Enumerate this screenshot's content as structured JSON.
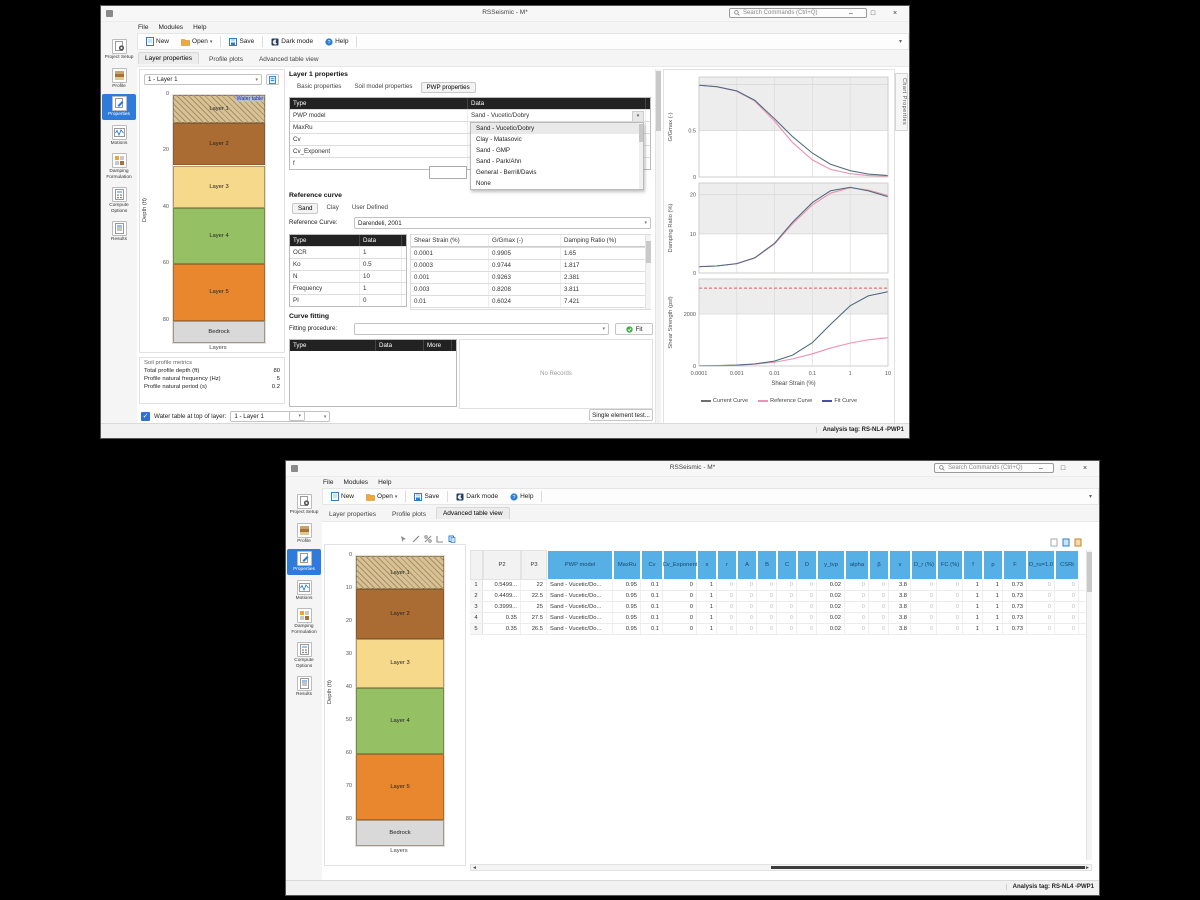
{
  "app": {
    "title": "RSSeismic - M*",
    "search_placeholder": "Search Commands (Ctrl+Q)",
    "menus": [
      "File",
      "Modules",
      "Help"
    ],
    "toolbar": {
      "new": "New",
      "open": "Open",
      "save": "Save",
      "dark_mode": "Dark mode",
      "help": "Help"
    },
    "sidebar": [
      "Project Setup",
      "Profile",
      "Properties",
      "Motions",
      "Damping Formulation",
      "Compute Options",
      "Results"
    ],
    "sidebar_selected": 2,
    "tabs": [
      "Layer properties",
      "Profile plots",
      "Advanced table view"
    ],
    "status_tag": "Analysis tag: RS-NL4 -PWP1",
    "window_controls": {
      "minimize": "–",
      "maximize": "□",
      "close": "×"
    }
  },
  "profile": {
    "selector_value": "1 - Layer 1",
    "ylabel": "Depth (ft)",
    "xlabel": "Layers",
    "water_table_label": "Water table",
    "depth_max": 88,
    "layers": [
      {
        "name": "Layer 1",
        "from": 0,
        "to": 10,
        "color": "#d8c195",
        "hatch": true
      },
      {
        "name": "Layer 2",
        "from": 10,
        "to": 25,
        "color": "#aa6c33"
      },
      {
        "name": "Layer 3",
        "from": 25,
        "to": 40,
        "color": "#f7d98c"
      },
      {
        "name": "Layer 4",
        "from": 40,
        "to": 60,
        "color": "#95c164"
      },
      {
        "name": "Layer 5",
        "from": 60,
        "to": 80,
        "color": "#e8872e"
      },
      {
        "name": "Bedrock",
        "from": 80,
        "to": 88,
        "color": "#d9d9d9"
      }
    ],
    "ticks_w1": [
      0,
      20,
      40,
      60,
      80
    ],
    "ticks_w2": [
      0,
      10,
      20,
      30,
      40,
      50,
      60,
      70,
      80
    ]
  },
  "metrics": {
    "title": "Soil profile metrics",
    "rows": [
      {
        "label": "Total profile depth (ft)",
        "value": "80"
      },
      {
        "label": "Profile natural frequency (Hz)",
        "value": "5"
      },
      {
        "label": "Profile natural period (s)",
        "value": "0.2"
      }
    ]
  },
  "water_row": {
    "label": "Water table at top of layer:",
    "value": "1 - Layer 1"
  },
  "layer_props": {
    "title": "Layer 1 properties",
    "tabs": [
      "Basic properties",
      "Soil model properties",
      "PWP properties"
    ],
    "selected_tab": 2,
    "header": [
      "Type",
      "Data"
    ],
    "rows": [
      {
        "type": "PWP model",
        "data": "Sand - Vucetic/Dobry"
      },
      {
        "type": "MaxRu",
        "data": ""
      },
      {
        "type": "Cv",
        "data": ""
      },
      {
        "type": "Cv_Exponent",
        "data": ""
      },
      {
        "type": "f",
        "data": ""
      }
    ],
    "dropdown_options": [
      "Sand - Vucetic/Dobry",
      "Clay - Matasovic",
      "Sand - GMP",
      "Sand - Park/Ahn",
      "General - Berrill/Davis",
      "None"
    ]
  },
  "reference_curve": {
    "title": "Reference curve",
    "tabs": [
      "Sand",
      "Clay",
      "User Defined"
    ],
    "selected_tab": 0,
    "label": "Reference Curve:",
    "value": "Darendeli, 2001",
    "params_header": [
      "Type",
      "Data"
    ],
    "params": [
      [
        "OCR",
        "1"
      ],
      [
        "Ko",
        "0.5"
      ],
      [
        "N",
        "10"
      ],
      [
        "Frequency",
        "1"
      ],
      [
        "PI",
        "0"
      ]
    ],
    "table_header": [
      "Shear Strain (%)",
      "G/Gmax (-)",
      "Damping Ratio (%)"
    ],
    "table_rows": [
      [
        "0.0001",
        "0.9905",
        "1.65"
      ],
      [
        "0.0003",
        "0.9744",
        "1.817"
      ],
      [
        "0.001",
        "0.9263",
        "2.381"
      ],
      [
        "0.003",
        "0.8208",
        "3.811"
      ],
      [
        "0.01",
        "0.6024",
        "7.421"
      ]
    ]
  },
  "curve_fitting": {
    "title": "Curve fitting",
    "proc_label": "Fitting procedure:",
    "fit_label": "Fit",
    "header": [
      "Type",
      "Data",
      "More"
    ],
    "empty_text": "No Records",
    "single_test_label": "Single element test..."
  },
  "charts": {
    "panel_tab": "Chart Properties",
    "x": [
      0.0001,
      0.0003,
      0.001,
      0.003,
      0.01,
      0.03,
      0.1,
      0.3,
      1,
      3,
      10
    ],
    "x_ticks": [
      "0.0001",
      "0.001",
      "0.01",
      "0.1",
      "1",
      "10"
    ],
    "xlabel": "Shear Strain (%)",
    "legend": [
      {
        "label": "Current Curve",
        "color": "#6f6f6f"
      },
      {
        "label": "Reference Curve",
        "color": "#ef91b4"
      },
      {
        "label": "Fit Curve",
        "color": "#4d4da8"
      }
    ],
    "plots": [
      {
        "ylabel": "G/Gmax (-)",
        "ymin": 0,
        "ymax": 1.08,
        "gridlines": [
          1,
          0.5,
          0
        ],
        "band_from": 0.5,
        "tick_labels": [
          [
            0.5,
            "0.5"
          ],
          [
            0,
            "0"
          ]
        ],
        "series": [
          {
            "name": "reference",
            "color": "#ef91b4",
            "values": [
              0.991,
              0.974,
              0.926,
              0.82,
              0.602,
              0.372,
              0.185,
              0.082,
              0.036,
              0.016,
              0.008
            ]
          },
          {
            "name": "current",
            "color": "#5aa467",
            "values": [
              0.991,
              0.975,
              0.93,
              0.828,
              0.628,
              0.435,
              0.258,
              0.138,
              0.068,
              0.032,
              0.016
            ]
          },
          {
            "name": "fit",
            "color": "#56569a",
            "width": 0.7,
            "values": [
              0.991,
              0.975,
              0.93,
              0.828,
              0.628,
              0.435,
              0.258,
              0.138,
              0.068,
              0.032,
              0.016
            ]
          }
        ]
      },
      {
        "ylabel": "Damping Ratio (%)",
        "ymin": 0,
        "ymax": 23,
        "gridlines": [
          20,
          10,
          0
        ],
        "band_from": 10,
        "tick_labels": [
          [
            20,
            "20"
          ],
          [
            10,
            "10"
          ],
          [
            0,
            "0"
          ]
        ],
        "series": [
          {
            "name": "reference",
            "color": "#ef91b4",
            "values": [
              1.65,
              1.82,
              2.38,
              3.81,
              7.42,
              12.6,
              17.4,
              20.4,
              21.8,
              21.2,
              19.8
            ]
          },
          {
            "name": "current",
            "color": "#5aa467",
            "values": [
              1.6,
              1.8,
              2.4,
              3.9,
              7.6,
              13.0,
              18.0,
              21.0,
              21.9,
              21.0,
              19.5
            ]
          },
          {
            "name": "fit",
            "color": "#56569a",
            "width": 0.7,
            "values": [
              1.6,
              1.8,
              2.4,
              3.9,
              7.6,
              13.0,
              18.0,
              21.0,
              21.9,
              21.0,
              19.5
            ]
          }
        ]
      },
      {
        "ylabel": "Shear Strength (psf)",
        "ymin": 0,
        "ymax": 3350,
        "gridlines": [
          2000,
          0
        ],
        "band_from": 2000,
        "tick_labels": [
          [
            2000,
            "2000"
          ],
          [
            0,
            "0"
          ]
        ],
        "dashed_line": {
          "y": 3000,
          "color": "#e25b5b"
        },
        "series": [
          {
            "name": "reference",
            "color": "#ef91b4",
            "values": [
              8,
              14,
              32,
              70,
              145,
              275,
              470,
              690,
              880,
              1010,
              1090
            ]
          },
          {
            "name": "current",
            "color": "#5aa467",
            "values": [
              8,
              15,
              35,
              80,
              190,
              420,
              900,
              1600,
              2320,
              2700,
              2860
            ]
          },
          {
            "name": "fit",
            "color": "#56569a",
            "width": 0.7,
            "values": [
              8,
              15,
              35,
              80,
              190,
              420,
              900,
              1600,
              2320,
              2700,
              2860
            ]
          }
        ]
      }
    ]
  },
  "adv_table": {
    "columns": [
      {
        "label": "P2",
        "kind": "gray"
      },
      {
        "label": "P3",
        "kind": "gray"
      },
      {
        "label": "PWP model",
        "kind": "blue"
      },
      {
        "label": "MaxRu",
        "kind": "blue"
      },
      {
        "label": "Cv",
        "kind": "blue"
      },
      {
        "label": "Cv_Exponent",
        "kind": "blue"
      },
      {
        "label": "s",
        "kind": "blue"
      },
      {
        "label": "r",
        "kind": "blue",
        "muted": true
      },
      {
        "label": "A",
        "kind": "blue",
        "muted": true
      },
      {
        "label": "B",
        "kind": "blue",
        "muted": true
      },
      {
        "label": "C",
        "kind": "blue",
        "muted": true
      },
      {
        "label": "D",
        "kind": "blue",
        "muted": true
      },
      {
        "label": "y_tvp",
        "kind": "blue"
      },
      {
        "label": "alpha",
        "kind": "blue",
        "muted": true
      },
      {
        "label": "β",
        "kind": "blue",
        "muted": true
      },
      {
        "label": "v",
        "kind": "blue"
      },
      {
        "label": "D_r (%)",
        "kind": "blue",
        "muted": true
      },
      {
        "label": "FC (%)",
        "kind": "blue",
        "muted": true
      },
      {
        "label": "f",
        "kind": "blue"
      },
      {
        "label": "p",
        "kind": "blue"
      },
      {
        "label": "F",
        "kind": "blue"
      },
      {
        "label": "D_ru=1.0",
        "kind": "blue",
        "muted": true
      },
      {
        "label": "CSRt",
        "kind": "blue",
        "muted": true
      }
    ],
    "rows": [
      [
        "0.5499...",
        "22",
        "Sand - Vucetic/Do...",
        "0.95",
        "0.1",
        "0",
        "1",
        "0",
        "0",
        "0",
        "0",
        "0",
        "0.02",
        "0",
        "0",
        "3.8",
        "0",
        "0",
        "1",
        "1",
        "0.73",
        "0",
        "0"
      ],
      [
        "0.4499...",
        "22.5",
        "Sand - Vucetic/Do...",
        "0.95",
        "0.1",
        "0",
        "1",
        "0",
        "0",
        "0",
        "0",
        "0",
        "0.02",
        "0",
        "0",
        "3.8",
        "0",
        "0",
        "1",
        "1",
        "0.73",
        "0",
        "0"
      ],
      [
        "0.3999...",
        "25",
        "Sand - Vucetic/Do...",
        "0.95",
        "0.1",
        "0",
        "1",
        "0",
        "0",
        "0",
        "0",
        "0",
        "0.02",
        "0",
        "0",
        "3.8",
        "0",
        "0",
        "1",
        "1",
        "0.73",
        "0",
        "0"
      ],
      [
        "0.35",
        "27.5",
        "Sand - Vucetic/Do...",
        "0.95",
        "0.1",
        "0",
        "1",
        "0",
        "0",
        "0",
        "0",
        "0",
        "0.02",
        "0",
        "0",
        "3.8",
        "0",
        "0",
        "1",
        "1",
        "0.73",
        "0",
        "0"
      ],
      [
        "0.35",
        "26.5",
        "Sand - Vucetic/Do...",
        "0.95",
        "0.1",
        "0",
        "1",
        "0",
        "0",
        "0",
        "0",
        "0",
        "0.02",
        "0",
        "0",
        "3.8",
        "0",
        "0",
        "1",
        "1",
        "0.73",
        "0",
        "0"
      ]
    ]
  }
}
